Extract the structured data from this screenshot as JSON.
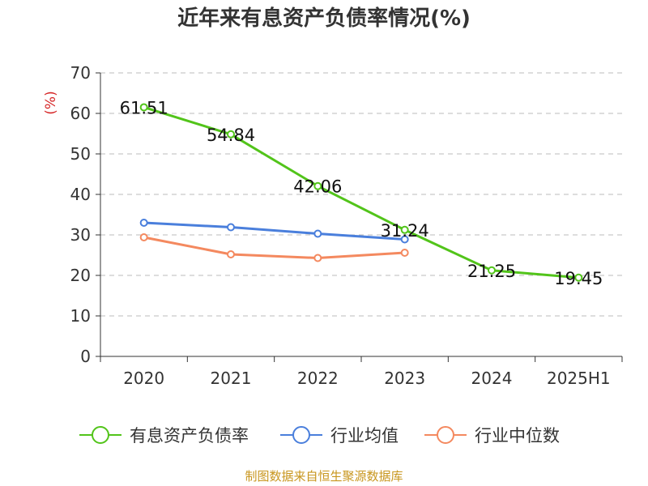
{
  "chart_data": {
    "type": "line",
    "title": "近年来有息资产负债率情况(%)",
    "ylabel": "(%)",
    "xlabel": "",
    "categories": [
      "2020",
      "2021",
      "2022",
      "2023",
      "2024",
      "2025H1"
    ],
    "yticks": [
      0,
      10,
      20,
      30,
      40,
      50,
      60,
      70
    ],
    "ylim": [
      0,
      70
    ],
    "grid": true,
    "legend_position": "bottom",
    "series": [
      {
        "name": "有息资产负债率",
        "color": "#52c41a",
        "values": [
          61.51,
          54.84,
          42.06,
          31.24,
          21.25,
          19.45
        ],
        "labels": [
          "61.51",
          "54.84",
          "42.06",
          "31.24",
          "21.25",
          "19.45"
        ]
      },
      {
        "name": "行业均值",
        "color": "#4a7fdc",
        "values": [
          33.0,
          31.9,
          30.3,
          28.9,
          null,
          null
        ]
      },
      {
        "name": "行业中位数",
        "color": "#f4895f",
        "values": [
          29.4,
          25.2,
          24.3,
          25.6,
          null,
          null
        ]
      }
    ]
  },
  "source": "制图数据来自恒生聚源数据库"
}
